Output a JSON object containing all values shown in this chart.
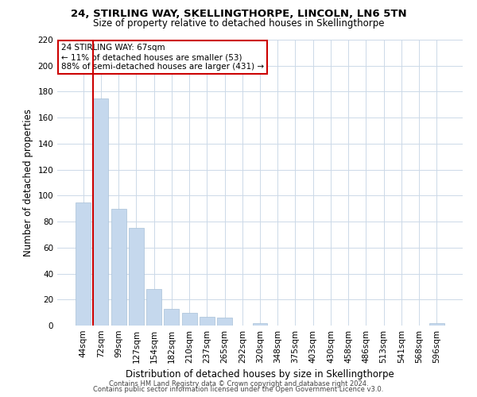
{
  "title": "24, STIRLING WAY, SKELLINGTHORPE, LINCOLN, LN6 5TN",
  "subtitle": "Size of property relative to detached houses in Skellingthorpe",
  "xlabel": "Distribution of detached houses by size in Skellingthorpe",
  "ylabel": "Number of detached properties",
  "bar_labels": [
    "44sqm",
    "72sqm",
    "99sqm",
    "127sqm",
    "154sqm",
    "182sqm",
    "210sqm",
    "237sqm",
    "265sqm",
    "292sqm",
    "320sqm",
    "348sqm",
    "375sqm",
    "403sqm",
    "430sqm",
    "458sqm",
    "486sqm",
    "513sqm",
    "541sqm",
    "568sqm",
    "596sqm"
  ],
  "bar_values": [
    95,
    175,
    90,
    75,
    28,
    13,
    10,
    7,
    6,
    0,
    2,
    0,
    0,
    0,
    0,
    0,
    0,
    0,
    0,
    0,
    2
  ],
  "bar_color": "#c5d8ed",
  "bar_edge_color": "#a8c0d8",
  "highlight_color": "#cc0000",
  "annotation_line1": "24 STIRLING WAY: 67sqm",
  "annotation_line2": "← 11% of detached houses are smaller (53)",
  "annotation_line3": "88% of semi-detached houses are larger (431) →",
  "annotation_box_color": "#ffffff",
  "annotation_border_color": "#cc0000",
  "ylim": [
    0,
    220
  ],
  "yticks": [
    0,
    20,
    40,
    60,
    80,
    100,
    120,
    140,
    160,
    180,
    200,
    220
  ],
  "footer1": "Contains HM Land Registry data © Crown copyright and database right 2024.",
  "footer2": "Contains public sector information licensed under the Open Government Licence v3.0.",
  "background_color": "#ffffff",
  "grid_color": "#ccd9e8"
}
